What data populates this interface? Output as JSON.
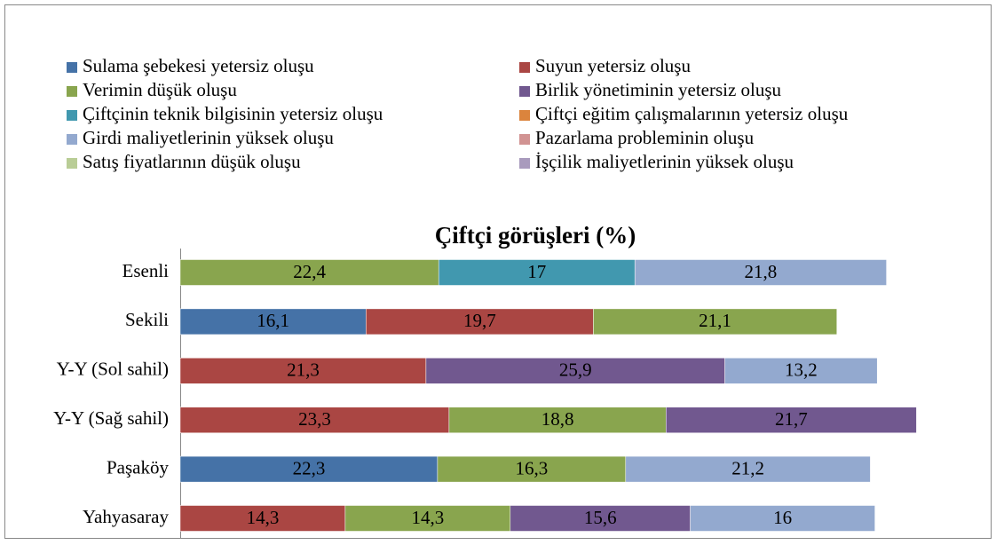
{
  "chart_data": {
    "type": "stacked-bar-horizontal",
    "title": "Çiftçi görüşleri (%)",
    "categories": [
      "Esenli",
      "Sekili",
      "Y-Y (Sol sahil)",
      "Y-Y (Sağ sahil)",
      "Paşaköy",
      "Yahyasaray"
    ],
    "series": [
      {
        "name": "Sulama şebekesi yetersiz oluşu",
        "color": "#4572a7",
        "values": [
          null,
          16.1,
          null,
          null,
          22.3,
          null
        ],
        "value_labels": [
          null,
          "16,1",
          null,
          null,
          "22,3",
          null
        ]
      },
      {
        "name": "Suyun yetersiz oluşu",
        "color": "#aa4643",
        "values": [
          null,
          19.7,
          21.3,
          23.3,
          null,
          14.3
        ],
        "value_labels": [
          null,
          "19,7",
          "21,3",
          "23,3",
          null,
          "14,3"
        ]
      },
      {
        "name": "Verimin düşük oluşu",
        "color": "#89a54e",
        "values": [
          22.4,
          21.1,
          null,
          18.8,
          16.3,
          14.3
        ],
        "value_labels": [
          "22,4",
          "21,1",
          null,
          "18,8",
          "16,3",
          "14,3"
        ]
      },
      {
        "name": "Birlik yönetiminin yetersiz oluşu",
        "color": "#71588f",
        "values": [
          null,
          null,
          25.9,
          21.7,
          null,
          15.6
        ],
        "value_labels": [
          null,
          null,
          "25,9",
          "21,7",
          null,
          "15,6"
        ]
      },
      {
        "name": "Çiftçinin teknik bilgisinin yetersiz oluşu",
        "color": "#4198af",
        "values": [
          17,
          null,
          null,
          null,
          null,
          null
        ],
        "value_labels": [
          "17",
          null,
          null,
          null,
          null,
          null
        ]
      },
      {
        "name": "Çiftçi eğitim çalışmalarının yetersiz oluşu",
        "color": "#db843d",
        "values": [
          null,
          null,
          null,
          null,
          null,
          null
        ]
      },
      {
        "name": "Girdi maliyetlerinin yüksek oluşu",
        "color": "#93a9cf",
        "values": [
          21.8,
          null,
          13.2,
          null,
          21.2,
          16
        ],
        "value_labels": [
          "21,8",
          null,
          "13,2",
          null,
          "21,2",
          "16"
        ]
      },
      {
        "name": "Pazarlama probleminin oluşu",
        "color": "#d19392",
        "values": [
          null,
          null,
          null,
          null,
          null,
          null
        ]
      },
      {
        "name": "Satış fiyatlarının düşük oluşu",
        "color": "#b9cd96",
        "values": [
          null,
          null,
          null,
          null,
          null,
          null
        ]
      },
      {
        "name": "İşçilik maliyetlerinin yüksek oluşu",
        "color": "#a99bbd",
        "values": [
          null,
          null,
          null,
          null,
          null,
          null
        ]
      }
    ]
  }
}
